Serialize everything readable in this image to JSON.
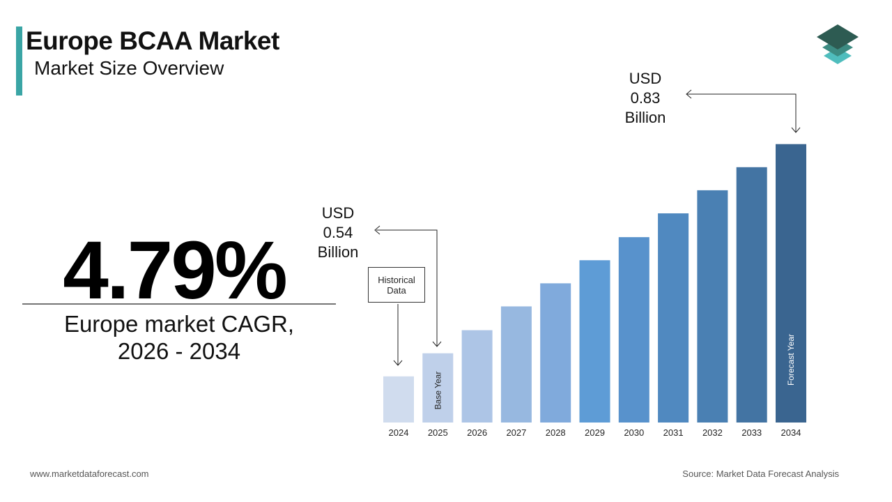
{
  "title": "Europe BCAA Market",
  "subtitle": "Market Size Overview",
  "cagr": {
    "value": "4.79%",
    "label": "Europe market CAGR, 2026 - 2034"
  },
  "chart_data": {
    "type": "bar",
    "categories": [
      "2024",
      "2025",
      "2026",
      "2027",
      "2028",
      "2029",
      "2030",
      "2031",
      "2032",
      "2033",
      "2034"
    ],
    "values": [
      0.508,
      0.54,
      0.572,
      0.605,
      0.637,
      0.669,
      0.701,
      0.734,
      0.766,
      0.798,
      0.83
    ],
    "value_labels": [
      null,
      "USD 0.54 Billion",
      null,
      null,
      null,
      null,
      null,
      null,
      null,
      null,
      "USD 0.83 Billion"
    ],
    "colors": [
      "#d0dcee",
      "#bfd0ea",
      "#adc5e6",
      "#97b8e0",
      "#80aadc",
      "#5e9cd6",
      "#5892cc",
      "#5089c0",
      "#4a80b3",
      "#4374a3",
      "#3a6590"
    ],
    "ylim": [
      0.444,
      0.85
    ],
    "annotations": {
      "historical": "Historical Data",
      "base_year": "Base Year",
      "forecast_year": "Forecast Year"
    }
  },
  "footer": {
    "url": "www.marketdataforecast.com",
    "source": "Source: Market Data Forecast Analysis"
  }
}
